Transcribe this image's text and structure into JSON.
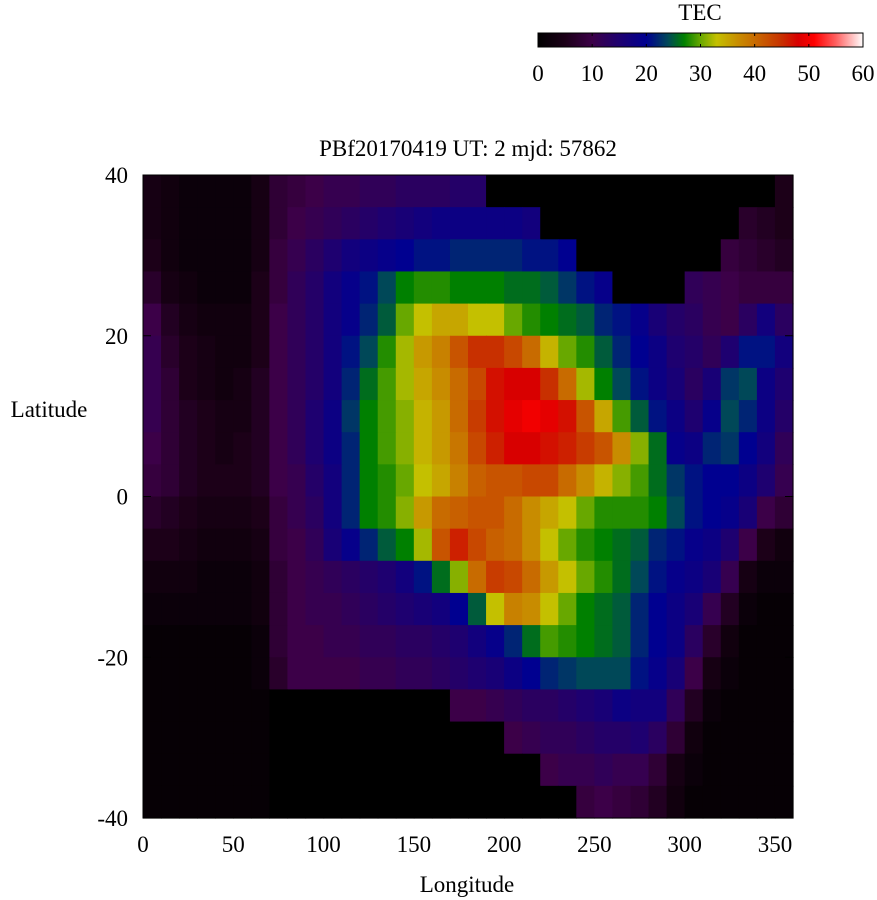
{
  "chart_data": {
    "type": "heatmap",
    "title": "PBf20170419  UT: 2  mjd: 57862",
    "xlabel": "Longitude",
    "ylabel": "Latitude",
    "xlim": [
      0,
      360
    ],
    "ylim": [
      -40,
      40
    ],
    "xticks": [
      "0",
      "50",
      "100",
      "150",
      "200",
      "250",
      "300",
      "350"
    ],
    "yticks": [
      "40",
      "20",
      "0",
      "-20",
      "-40"
    ],
    "lon_step": 10,
    "lat_step": 4,
    "lon": [
      0,
      10,
      20,
      30,
      40,
      50,
      60,
      70,
      80,
      90,
      100,
      110,
      120,
      130,
      140,
      150,
      160,
      170,
      180,
      190,
      200,
      210,
      220,
      230,
      240,
      250,
      260,
      270,
      280,
      290,
      300,
      310,
      320,
      330,
      340,
      350
    ],
    "lat": [
      38,
      34,
      30,
      26,
      22,
      18,
      14,
      10,
      6,
      2,
      -2,
      -6,
      -10,
      -14,
      -18,
      -22,
      -26,
      -30,
      -34,
      -38
    ],
    "values": [
      [
        4,
        3,
        2,
        2,
        2,
        2,
        4,
        8,
        9,
        10,
        11,
        11,
        12,
        12,
        13,
        13,
        13,
        14,
        14,
        0,
        0,
        0,
        0,
        0,
        0,
        0,
        0,
        0,
        0,
        0,
        0,
        0,
        0,
        0,
        0,
        5
      ],
      [
        4,
        3,
        2,
        2,
        2,
        2,
        4,
        8,
        10,
        11,
        12,
        13,
        14,
        15,
        16,
        17,
        18,
        18,
        18,
        18,
        18,
        17,
        0,
        0,
        0,
        0,
        0,
        0,
        0,
        0,
        0,
        0,
        0,
        7,
        6,
        5
      ],
      [
        5,
        3,
        2,
        2,
        2,
        2,
        4,
        9,
        11,
        13,
        15,
        17,
        18,
        19,
        20,
        21,
        21,
        22,
        22,
        22,
        22,
        21,
        21,
        20,
        0,
        0,
        0,
        0,
        0,
        0,
        0,
        0,
        9,
        8,
        7,
        6
      ],
      [
        7,
        4,
        3,
        2,
        2,
        2,
        5,
        9,
        12,
        14,
        17,
        19,
        21,
        24,
        27,
        28,
        28,
        27,
        27,
        27,
        26,
        26,
        25,
        23,
        21,
        19,
        0,
        0,
        0,
        0,
        12,
        11,
        10,
        9,
        9,
        9
      ],
      [
        10,
        6,
        4,
        3,
        3,
        3,
        5,
        10,
        12,
        14,
        17,
        19,
        22,
        25,
        30,
        33,
        35,
        35,
        33,
        33,
        30,
        28,
        27,
        26,
        25,
        22,
        21,
        19,
        16,
        14,
        13,
        11,
        10,
        13,
        17,
        13
      ],
      [
        11,
        7,
        5,
        4,
        3,
        3,
        5,
        10,
        12,
        14,
        17,
        21,
        24,
        28,
        32,
        36,
        38,
        42,
        45,
        45,
        43,
        40,
        34,
        30,
        28,
        25,
        22,
        20,
        18,
        15,
        14,
        12,
        15,
        21,
        21,
        17
      ],
      [
        11,
        8,
        5,
        4,
        3,
        4,
        6,
        10,
        12,
        14,
        17,
        22,
        26,
        29,
        32,
        35,
        37,
        40,
        43,
        47,
        48,
        48,
        45,
        40,
        32,
        27,
        24,
        21,
        18,
        16,
        13,
        16,
        23,
        24,
        18,
        15
      ],
      [
        11,
        8,
        6,
        5,
        4,
        4,
        6,
        10,
        12,
        15,
        18,
        23,
        27,
        29,
        31,
        34,
        36,
        40,
        44,
        47,
        49,
        50,
        49,
        47,
        42,
        35,
        29,
        25,
        21,
        18,
        15,
        19,
        24,
        22,
        18,
        14
      ],
      [
        10,
        8,
        6,
        5,
        4,
        5,
        6,
        10,
        12,
        15,
        18,
        22,
        27,
        29,
        31,
        34,
        36,
        39,
        43,
        46,
        48,
        48,
        47,
        46,
        44,
        42,
        37,
        31,
        26,
        19,
        18,
        22,
        23,
        20,
        17,
        12
      ],
      [
        9,
        8,
        6,
        5,
        5,
        5,
        6,
        10,
        11,
        14,
        17,
        22,
        27,
        28,
        30,
        33,
        35,
        38,
        41,
        42,
        42,
        43,
        43,
        40,
        37,
        34,
        31,
        29,
        26,
        23,
        21,
        20,
        20,
        18,
        15,
        11
      ],
      [
        7,
        6,
        5,
        4,
        4,
        4,
        5,
        9,
        11,
        13,
        17,
        22,
        27,
        28,
        31,
        36,
        40,
        41,
        42,
        42,
        40,
        37,
        35,
        33,
        30,
        28,
        28,
        28,
        27,
        24,
        21,
        20,
        19,
        16,
        10,
        8
      ],
      [
        5,
        5,
        4,
        3,
        3,
        3,
        4,
        9,
        10,
        12,
        16,
        19,
        22,
        25,
        27,
        32,
        42,
        46,
        43,
        41,
        40,
        37,
        33,
        30,
        28,
        27,
        26,
        25,
        22,
        21,
        19,
        18,
        15,
        10,
        5,
        3
      ],
      [
        3,
        3,
        3,
        2,
        2,
        2,
        3,
        8,
        10,
        11,
        12,
        13,
        14,
        15,
        17,
        21,
        26,
        31,
        40,
        44,
        43,
        40,
        36,
        33,
        30,
        28,
        26,
        24,
        21,
        19,
        18,
        16,
        11,
        4,
        2,
        2
      ],
      [
        2,
        2,
        2,
        2,
        2,
        2,
        3,
        8,
        10,
        11,
        11,
        12,
        13,
        14,
        15,
        16,
        17,
        20,
        25,
        33,
        38,
        37,
        33,
        30,
        27,
        26,
        25,
        22,
        20,
        18,
        16,
        11,
        6,
        2,
        1,
        1
      ],
      [
        1,
        1,
        1,
        1,
        1,
        1,
        2,
        8,
        10,
        10,
        11,
        11,
        12,
        12,
        13,
        13,
        14,
        15,
        17,
        19,
        22,
        26,
        29,
        28,
        27,
        26,
        25,
        22,
        20,
        18,
        13,
        7,
        3,
        1,
        1,
        1
      ],
      [
        1,
        1,
        1,
        1,
        1,
        1,
        2,
        7,
        10,
        10,
        10,
        10,
        11,
        11,
        12,
        12,
        13,
        14,
        15,
        16,
        18,
        20,
        22,
        23,
        24,
        24,
        24,
        21,
        19,
        16,
        10,
        4,
        2,
        1,
        1,
        1
      ],
      [
        1,
        1,
        1,
        1,
        1,
        1,
        1,
        0,
        0,
        0,
        0,
        0,
        0,
        0,
        0,
        0,
        0,
        10,
        10,
        11,
        12,
        13,
        13,
        14,
        15,
        16,
        18,
        17,
        17,
        12,
        6,
        2,
        1,
        1,
        1,
        1
      ],
      [
        1,
        1,
        1,
        1,
        1,
        1,
        1,
        0,
        0,
        0,
        0,
        0,
        0,
        0,
        0,
        0,
        0,
        0,
        0,
        0,
        10,
        11,
        12,
        12,
        13,
        14,
        14,
        15,
        13,
        8,
        3,
        1,
        1,
        1,
        1,
        1
      ],
      [
        1,
        1,
        1,
        1,
        1,
        1,
        1,
        0,
        0,
        0,
        0,
        0,
        0,
        0,
        0,
        0,
        0,
        0,
        0,
        0,
        0,
        0,
        10,
        11,
        11,
        12,
        11,
        11,
        8,
        4,
        2,
        1,
        1,
        1,
        1,
        1
      ],
      [
        1,
        1,
        1,
        1,
        1,
        1,
        1,
        0,
        0,
        0,
        0,
        0,
        0,
        0,
        0,
        0,
        0,
        0,
        0,
        0,
        0,
        0,
        0,
        0,
        9,
        10,
        9,
        8,
        6,
        3,
        1,
        1,
        1,
        1,
        1,
        1
      ]
    ],
    "colorbar": {
      "label": "TEC",
      "range": [
        0,
        60
      ],
      "ticks": [
        "0",
        "10",
        "20",
        "30",
        "40",
        "50",
        "60"
      ],
      "colormap": [
        [
          0,
          "#000000"
        ],
        [
          5,
          "#1c0018"
        ],
        [
          10,
          "#3c0048"
        ],
        [
          15,
          "#1e0070"
        ],
        [
          20,
          "#000090"
        ],
        [
          24,
          "#004858"
        ],
        [
          27,
          "#008000"
        ],
        [
          30,
          "#68a800"
        ],
        [
          33,
          "#c4c000"
        ],
        [
          37,
          "#c88c00"
        ],
        [
          41,
          "#c86000"
        ],
        [
          45,
          "#c83000"
        ],
        [
          48,
          "#d80000"
        ],
        [
          51,
          "#ff0000"
        ],
        [
          55,
          "#ff6060"
        ],
        [
          60,
          "#ffffff"
        ]
      ]
    }
  }
}
